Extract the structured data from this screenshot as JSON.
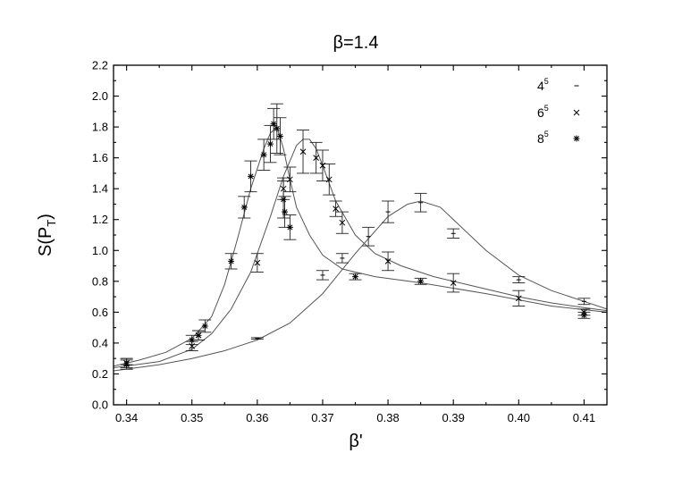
{
  "chart_data": {
    "type": "scatter",
    "title": "β=1.4",
    "xlabel": "β'",
    "ylabel_main": "S(P",
    "ylabel_sub": "T",
    "ylabel_close": ")",
    "xlim": [
      0.338,
      0.4135
    ],
    "ylim": [
      0.0,
      2.2
    ],
    "xticks": [
      0.34,
      0.35,
      0.36,
      0.37,
      0.38,
      0.39,
      0.4,
      0.41
    ],
    "xtick_labels": [
      "0.34",
      "0.35",
      "0.36",
      "0.37",
      "0.38",
      "0.39",
      "0.40",
      "0.41"
    ],
    "yticks": [
      0.0,
      0.2,
      0.4,
      0.6,
      0.8,
      1.0,
      1.2,
      1.4,
      1.6,
      1.8,
      2.0,
      2.2
    ],
    "ytick_labels": [
      "0.0",
      "0.2",
      "0.4",
      "0.6",
      "0.8",
      "1.0",
      "1.2",
      "1.4",
      "1.6",
      "1.8",
      "2.0",
      "2.2"
    ],
    "legend_position": "top-right",
    "grid": false,
    "series": [
      {
        "name_base": "4",
        "name_exp": "5",
        "marker": "dash",
        "points": [
          {
            "x": 0.34,
            "y": 0.28,
            "err": 0.02
          },
          {
            "x": 0.36,
            "y": 0.43,
            "err": 0.005
          },
          {
            "x": 0.37,
            "y": 0.84,
            "err": 0.03
          },
          {
            "x": 0.373,
            "y": 0.95,
            "err": 0.03
          },
          {
            "x": 0.377,
            "y": 1.09,
            "err": 0.06
          },
          {
            "x": 0.38,
            "y": 1.25,
            "err": 0.07
          },
          {
            "x": 0.385,
            "y": 1.31,
            "err": 0.06
          },
          {
            "x": 0.39,
            "y": 1.11,
            "err": 0.03
          },
          {
            "x": 0.4,
            "y": 0.81,
            "err": 0.02
          },
          {
            "x": 0.41,
            "y": 0.67,
            "err": 0.02
          }
        ],
        "curve": [
          [
            0.338,
            0.22
          ],
          [
            0.345,
            0.26
          ],
          [
            0.35,
            0.3
          ],
          [
            0.355,
            0.35
          ],
          [
            0.36,
            0.42
          ],
          [
            0.365,
            0.53
          ],
          [
            0.37,
            0.72
          ],
          [
            0.375,
            0.98
          ],
          [
            0.38,
            1.22
          ],
          [
            0.383,
            1.3
          ],
          [
            0.385,
            1.32
          ],
          [
            0.388,
            1.28
          ],
          [
            0.39,
            1.2
          ],
          [
            0.395,
            1.0
          ],
          [
            0.4,
            0.84
          ],
          [
            0.405,
            0.74
          ],
          [
            0.41,
            0.67
          ],
          [
            0.4135,
            0.62
          ]
        ]
      },
      {
        "name_base": "6",
        "name_exp": "5",
        "marker": "x",
        "points": [
          {
            "x": 0.34,
            "y": 0.27,
            "err": 0.03
          },
          {
            "x": 0.35,
            "y": 0.38,
            "err": 0.03
          },
          {
            "x": 0.351,
            "y": 0.45,
            "err": 0.03
          },
          {
            "x": 0.36,
            "y": 0.92,
            "err": 0.06
          },
          {
            "x": 0.364,
            "y": 1.4,
            "err": 0.07
          },
          {
            "x": 0.365,
            "y": 1.46,
            "err": 0.08
          },
          {
            "x": 0.367,
            "y": 1.64,
            "err": 0.14
          },
          {
            "x": 0.369,
            "y": 1.6,
            "err": 0.1
          },
          {
            "x": 0.37,
            "y": 1.55,
            "err": 0.1
          },
          {
            "x": 0.371,
            "y": 1.46,
            "err": 0.1
          },
          {
            "x": 0.372,
            "y": 1.27,
            "err": 0.05
          },
          {
            "x": 0.373,
            "y": 1.18,
            "err": 0.07
          },
          {
            "x": 0.38,
            "y": 0.93,
            "err": 0.06
          },
          {
            "x": 0.39,
            "y": 0.79,
            "err": 0.06
          },
          {
            "x": 0.4,
            "y": 0.69,
            "err": 0.05
          },
          {
            "x": 0.41,
            "y": 0.6,
            "err": 0.02
          }
        ],
        "curve": [
          [
            0.338,
            0.24
          ],
          [
            0.345,
            0.28
          ],
          [
            0.35,
            0.36
          ],
          [
            0.353,
            0.46
          ],
          [
            0.356,
            0.62
          ],
          [
            0.359,
            0.86
          ],
          [
            0.362,
            1.22
          ],
          [
            0.364,
            1.48
          ],
          [
            0.366,
            1.68
          ],
          [
            0.367,
            1.72
          ],
          [
            0.368,
            1.72
          ],
          [
            0.369,
            1.66
          ],
          [
            0.37,
            1.55
          ],
          [
            0.372,
            1.32
          ],
          [
            0.375,
            1.1
          ],
          [
            0.378,
            0.98
          ],
          [
            0.382,
            0.9
          ],
          [
            0.387,
            0.83
          ],
          [
            0.393,
            0.77
          ],
          [
            0.4,
            0.7
          ],
          [
            0.405,
            0.66
          ],
          [
            0.41,
            0.63
          ],
          [
            0.4135,
            0.61
          ]
        ]
      },
      {
        "name_base": "8",
        "name_exp": "5",
        "marker": "star",
        "points": [
          {
            "x": 0.34,
            "y": 0.26,
            "err": 0.03
          },
          {
            "x": 0.35,
            "y": 0.42,
            "err": 0.03
          },
          {
            "x": 0.351,
            "y": 0.45,
            "err": 0.03
          },
          {
            "x": 0.352,
            "y": 0.51,
            "err": 0.04
          },
          {
            "x": 0.356,
            "y": 0.93,
            "err": 0.05
          },
          {
            "x": 0.358,
            "y": 1.28,
            "err": 0.07
          },
          {
            "x": 0.359,
            "y": 1.48,
            "err": 0.1
          },
          {
            "x": 0.361,
            "y": 1.62,
            "err": 0.1
          },
          {
            "x": 0.362,
            "y": 1.69,
            "err": 0.12
          },
          {
            "x": 0.3625,
            "y": 1.82,
            "err": 0.1
          },
          {
            "x": 0.363,
            "y": 1.79,
            "err": 0.16
          },
          {
            "x": 0.3635,
            "y": 1.74,
            "err": 0.12
          },
          {
            "x": 0.364,
            "y": 1.33,
            "err": 0.12
          },
          {
            "x": 0.3642,
            "y": 1.25,
            "err": 0.1
          },
          {
            "x": 0.365,
            "y": 1.15,
            "err": 0.08
          },
          {
            "x": 0.375,
            "y": 0.83,
            "err": 0.02
          },
          {
            "x": 0.385,
            "y": 0.8,
            "err": 0.02
          },
          {
            "x": 0.41,
            "y": 0.58,
            "err": 0.02
          }
        ],
        "curve": [
          [
            0.338,
            0.25
          ],
          [
            0.342,
            0.29
          ],
          [
            0.346,
            0.34
          ],
          [
            0.35,
            0.43
          ],
          [
            0.353,
            0.57
          ],
          [
            0.355,
            0.78
          ],
          [
            0.357,
            1.08
          ],
          [
            0.359,
            1.4
          ],
          [
            0.361,
            1.66
          ],
          [
            0.362,
            1.76
          ],
          [
            0.363,
            1.8
          ],
          [
            0.364,
            1.66
          ],
          [
            0.365,
            1.46
          ],
          [
            0.366,
            1.28
          ],
          [
            0.368,
            1.1
          ],
          [
            0.37,
            0.97
          ],
          [
            0.373,
            0.88
          ],
          [
            0.378,
            0.83
          ],
          [
            0.385,
            0.79
          ],
          [
            0.395,
            0.72
          ],
          [
            0.405,
            0.64
          ],
          [
            0.4135,
            0.6
          ]
        ]
      }
    ]
  }
}
